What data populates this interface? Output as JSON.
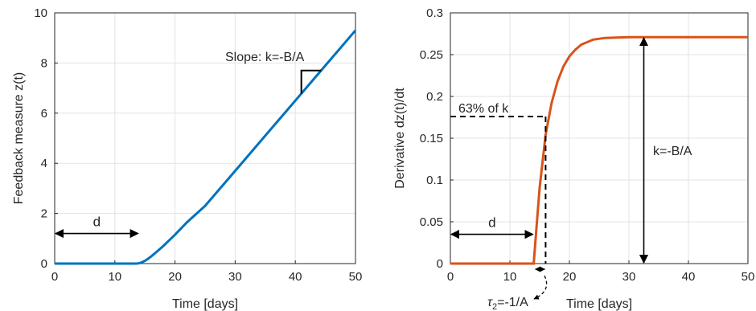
{
  "chart_data": [
    {
      "type": "line",
      "xlabel": "Time [days]",
      "ylabel": "Feedback measure z(t)",
      "xlim": [
        0,
        50
      ],
      "ylim": [
        0,
        10
      ],
      "xticks": [
        "0",
        "10",
        "20",
        "30",
        "40",
        "50"
      ],
      "yticks": [
        "0",
        "2",
        "4",
        "6",
        "8",
        "10"
      ],
      "grid": true,
      "series": [
        {
          "color": "#0072BD",
          "x": [
            0,
            13.5,
            14,
            14.5,
            15,
            15.5,
            16,
            17,
            18,
            19,
            20,
            22,
            25,
            30,
            35,
            40,
            45,
            50
          ],
          "y": [
            0,
            0,
            0.01,
            0.05,
            0.11,
            0.19,
            0.28,
            0.48,
            0.69,
            0.92,
            1.15,
            1.65,
            2.3,
            3.7,
            5.1,
            6.5,
            7.9,
            9.3
          ]
        }
      ],
      "annotations": {
        "delay_label": "d",
        "delay_arrow_x": [
          0,
          14
        ],
        "delay_arrow_y": 1.2,
        "slope_label": "Slope: k=-B/A"
      }
    },
    {
      "type": "line",
      "xlabel": "Time [days]",
      "ylabel": "Derivative dz(t)/dt",
      "xlim": [
        0,
        50
      ],
      "ylim": [
        0,
        0.3
      ],
      "xticks": [
        "0",
        "10",
        "20",
        "30",
        "40",
        "50"
      ],
      "yticks": [
        "0",
        "0.05",
        "0.1",
        "0.15",
        "0.2",
        "0.25",
        "0.3"
      ],
      "grid": true,
      "series": [
        {
          "color": "#D95319",
          "x": [
            0,
            14,
            14.5,
            15,
            16,
            17,
            18,
            19,
            20,
            21,
            22,
            24,
            26,
            30,
            35,
            40,
            45,
            50
          ],
          "y": [
            0,
            0,
            0.046,
            0.091,
            0.154,
            0.192,
            0.218,
            0.236,
            0.248,
            0.256,
            0.262,
            0.268,
            0.27,
            0.271,
            0.271,
            0.271,
            0.271,
            0.271
          ]
        }
      ],
      "annotations": {
        "delay_label": "d",
        "delay_arrow_x": [
          0,
          14
        ],
        "delay_arrow_y": 0.035,
        "pct_label": "63% of k",
        "pct_level": 0.176,
        "pct_x": 16,
        "k_label": "k=-B/A",
        "k_arrow_x": 32.5,
        "k_value": 0.271,
        "tau_label_symbol": "τ",
        "tau_label_sub": "2",
        "tau_label_rest": "=-1/A"
      }
    }
  ]
}
